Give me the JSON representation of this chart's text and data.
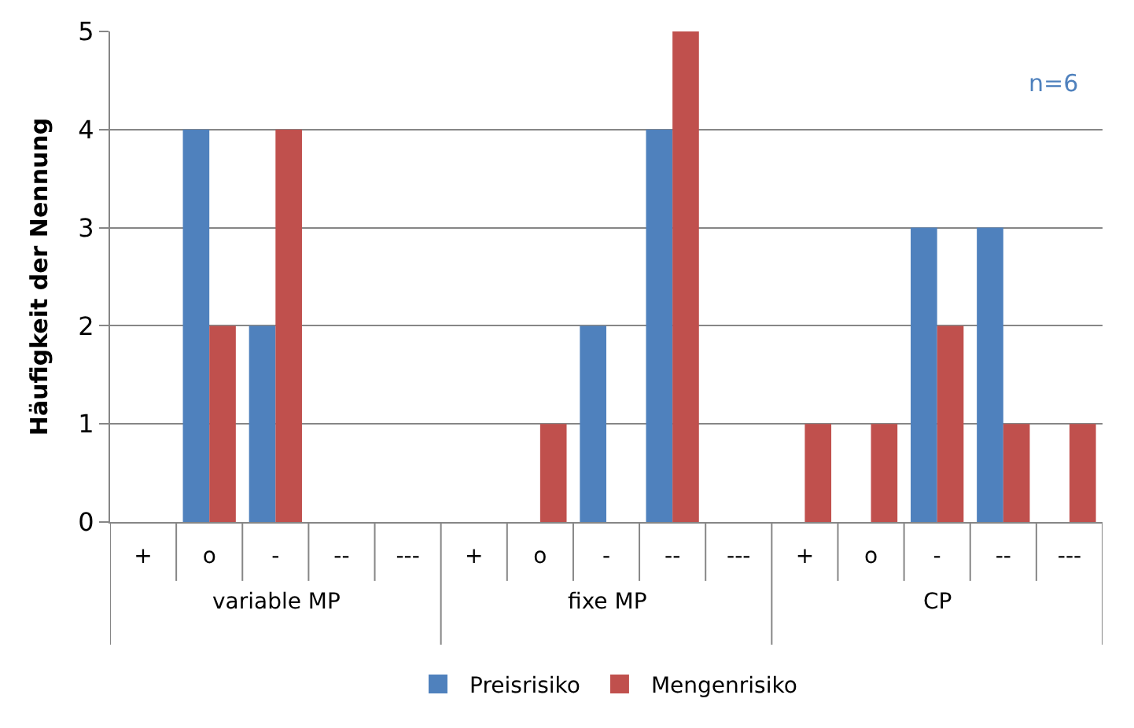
{
  "chart_data": {
    "type": "bar",
    "ylabel": "Häufigkeit der Nennung",
    "categories": [
      "+",
      "o",
      "-",
      "--",
      "---",
      "+",
      "o",
      "-",
      "--",
      "---",
      "+",
      "o",
      "-",
      "--",
      "---"
    ],
    "series": [
      {
        "name": "Preisrisiko",
        "color": "#4f81bd",
        "values": [
          0,
          4,
          2,
          0,
          0,
          0,
          0,
          2,
          4,
          0,
          0,
          0,
          3,
          3,
          0
        ]
      },
      {
        "name": "Mengenrisiko",
        "color": "#c0504d",
        "values": [
          0,
          2,
          4,
          0,
          0,
          0,
          1,
          0,
          5,
          0,
          1,
          1,
          2,
          1,
          1
        ]
      }
    ],
    "ylim": [
      0,
      5
    ],
    "yticks": [
      0,
      1,
      2,
      3,
      4,
      5
    ],
    "grid": "y",
    "legend": "bottom",
    "annotations": [
      "variable MP",
      "fixe MP",
      "CP",
      "n=6"
    ]
  }
}
